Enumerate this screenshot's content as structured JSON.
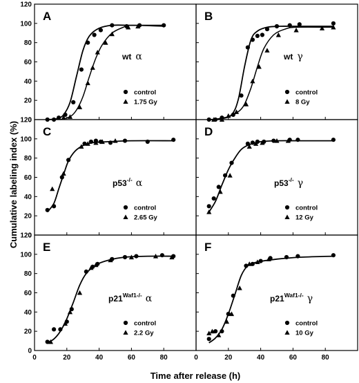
{
  "figure": {
    "ylabel": "Cumulative labeling index (%)",
    "xlabel": "Time after release (h)"
  },
  "chart_data": [
    {
      "type": "scatter",
      "panel": "A",
      "condition": "wt",
      "radiation": "α",
      "xlim": [
        0,
        100
      ],
      "ylim": [
        0,
        120
      ],
      "x_ticks": [
        0,
        20,
        40,
        60,
        80
      ],
      "y_ticks": [
        0,
        20,
        40,
        60,
        80,
        100,
        120
      ],
      "series": [
        {
          "name": "control",
          "marker": "circle",
          "x": [
            8,
            12,
            15,
            19,
            24,
            29,
            33,
            37,
            41,
            48,
            57,
            65,
            80
          ],
          "y": [
            0,
            0,
            2,
            5,
            18,
            52,
            80,
            88,
            93,
            98,
            97,
            98,
            98
          ],
          "curve": [
            [
              8,
              0
            ],
            [
              14,
              1
            ],
            [
              18,
              5
            ],
            [
              22,
              18
            ],
            [
              26,
              45
            ],
            [
              30,
              72
            ],
            [
              34,
              87
            ],
            [
              40,
              95
            ],
            [
              48,
              98
            ],
            [
              60,
              98
            ],
            [
              80,
              98
            ]
          ]
        },
        {
          "name": "1.75 Gy",
          "marker": "triangle",
          "x": [
            18,
            22,
            28,
            33,
            36,
            39,
            44,
            48,
            58,
            64
          ],
          "y": [
            2,
            3,
            13,
            38,
            54,
            70,
            80,
            89,
            96,
            97
          ],
          "curve": [
            [
              16,
              0
            ],
            [
              22,
              3
            ],
            [
              26,
              10
            ],
            [
              30,
              24
            ],
            [
              34,
              45
            ],
            [
              38,
              64
            ],
            [
              42,
              78
            ],
            [
              48,
              90
            ],
            [
              55,
              96
            ],
            [
              60,
              98
            ],
            [
              80,
              97
            ]
          ]
        }
      ]
    },
    {
      "type": "scatter",
      "panel": "B",
      "condition": "wt",
      "radiation": "γ",
      "xlim": [
        0,
        100
      ],
      "ylim": [
        0,
        120
      ],
      "x_ticks": [
        0,
        20,
        40,
        60,
        80
      ],
      "y_ticks": [
        0,
        20,
        40,
        60,
        80,
        100,
        120
      ],
      "series": [
        {
          "name": "control",
          "marker": "circle",
          "x": [
            8,
            12,
            16,
            23,
            28,
            32,
            35,
            38,
            41,
            44,
            50,
            58,
            64,
            85
          ],
          "y": [
            0,
            0,
            2,
            5,
            25,
            75,
            83,
            87,
            88,
            94,
            97,
            98,
            99,
            100
          ],
          "curve": [
            [
              8,
              0
            ],
            [
              16,
              1
            ],
            [
              22,
              5
            ],
            [
              26,
              20
            ],
            [
              30,
              55
            ],
            [
              34,
              83
            ],
            [
              38,
              92
            ],
            [
              44,
              96
            ],
            [
              52,
              97
            ],
            [
              60,
              97
            ],
            [
              85,
              97
            ]
          ]
        },
        {
          "name": "8 Gy",
          "marker": "triangle",
          "x": [
            11,
            16,
            20,
            25,
            31,
            35,
            39,
            44,
            51,
            62,
            78,
            85
          ],
          "y": [
            0,
            0,
            4,
            8,
            16,
            40,
            55,
            72,
            88,
            93,
            95,
            96
          ],
          "curve": [
            [
              10,
              0
            ],
            [
              20,
              3
            ],
            [
              26,
              8
            ],
            [
              30,
              16
            ],
            [
              34,
              33
            ],
            [
              38,
              55
            ],
            [
              42,
              74
            ],
            [
              48,
              88
            ],
            [
              55,
              94
            ],
            [
              62,
              96
            ],
            [
              85,
              96
            ]
          ]
        }
      ]
    },
    {
      "type": "scatter",
      "panel": "C",
      "condition": "p53",
      "superscript": "-/-",
      "radiation": "α",
      "xlim": [
        0,
        100
      ],
      "ylim": [
        0,
        120
      ],
      "x_ticks": [
        0,
        20,
        40,
        60,
        80
      ],
      "y_ticks": [
        0,
        20,
        40,
        60,
        80,
        100,
        120
      ],
      "series": [
        {
          "name": "control",
          "marker": "circle",
          "x": [
            8,
            12,
            17,
            21,
            31,
            35,
            38,
            41,
            47,
            56,
            70,
            86
          ],
          "y": [
            26,
            30,
            60,
            78,
            95,
            97,
            98,
            97,
            96,
            98,
            97,
            99
          ],
          "curve": [
            [
              8,
              24
            ],
            [
              12,
              33
            ],
            [
              15,
              48
            ],
            [
              18,
              63
            ],
            [
              21,
              77
            ],
            [
              25,
              87
            ],
            [
              30,
              93
            ],
            [
              36,
              96
            ],
            [
              45,
              97
            ],
            [
              60,
              98
            ],
            [
              86,
              98
            ]
          ]
        },
        {
          "name": "2.65 Gy",
          "marker": "triangle",
          "x": [
            11,
            18,
            29,
            33,
            38,
            42,
            50
          ],
          "y": [
            48,
            64,
            92,
            95,
            96,
            97,
            98
          ],
          "curve": []
        }
      ]
    },
    {
      "type": "scatter",
      "panel": "D",
      "condition": "p53",
      "superscript": "-/-",
      "radiation": "γ",
      "xlim": [
        0,
        100
      ],
      "ylim": [
        0,
        120
      ],
      "x_ticks": [
        0,
        20,
        40,
        60,
        80
      ],
      "y_ticks": [
        0,
        20,
        40,
        60,
        80,
        100,
        120
      ],
      "series": [
        {
          "name": "control",
          "marker": "circle",
          "x": [
            8,
            11,
            14,
            18,
            22,
            32,
            35,
            38,
            42,
            48,
            58,
            63,
            85
          ],
          "y": [
            30,
            38,
            50,
            62,
            75,
            95,
            96,
            97,
            97,
            98,
            99,
            99,
            99
          ],
          "curve": [
            [
              8,
              24
            ],
            [
              12,
              35
            ],
            [
              16,
              52
            ],
            [
              20,
              68
            ],
            [
              24,
              80
            ],
            [
              28,
              89
            ],
            [
              33,
              94
            ],
            [
              40,
              97
            ],
            [
              50,
              98
            ],
            [
              65,
              98
            ],
            [
              85,
              98
            ]
          ]
        },
        {
          "name": "12 Gy",
          "marker": "triangle",
          "x": [
            8,
            15,
            21,
            33,
            37,
            41,
            50,
            57
          ],
          "y": [
            24,
            45,
            62,
            92,
            95,
            96,
            98,
            98
          ],
          "curve": []
        }
      ]
    },
    {
      "type": "scatter",
      "panel": "E",
      "condition": "p21",
      "superscript": "Waf1-/-",
      "radiation": "α",
      "xlim": [
        0,
        100
      ],
      "ylim": [
        0,
        120
      ],
      "x_ticks": [
        0,
        20,
        40,
        60,
        80
      ],
      "y_ticks": [
        0,
        20,
        40,
        60,
        80,
        100,
        120
      ],
      "series": [
        {
          "name": "control",
          "marker": "circle",
          "x": [
            8,
            12,
            16,
            20,
            23,
            32,
            36,
            39,
            48,
            56,
            63,
            79,
            86
          ],
          "y": [
            9,
            22,
            22,
            30,
            43,
            82,
            87,
            90,
            95,
            97,
            98,
            99,
            98
          ],
          "curve": [
            [
              8,
              8
            ],
            [
              12,
              12
            ],
            [
              16,
              20
            ],
            [
              20,
              33
            ],
            [
              24,
              50
            ],
            [
              28,
              68
            ],
            [
              32,
              80
            ],
            [
              38,
              89
            ],
            [
              46,
              94
            ],
            [
              56,
              97
            ],
            [
              70,
              98
            ],
            [
              86,
              98
            ]
          ]
        },
        {
          "name": "2.2 Gy",
          "marker": "triangle",
          "x": [
            10,
            19,
            22,
            28,
            35,
            38,
            47,
            60,
            75,
            85
          ],
          "y": [
            9,
            28,
            40,
            60,
            86,
            89,
            94,
            97,
            98,
            97
          ],
          "curve": []
        }
      ]
    },
    {
      "type": "scatter",
      "panel": "F",
      "condition": "p21",
      "superscript": "Waf1-/-",
      "radiation": "γ",
      "xlim": [
        0,
        100
      ],
      "ylim": [
        0,
        120
      ],
      "x_ticks": [
        0,
        20,
        40,
        60,
        80
      ],
      "y_ticks": [
        0,
        20,
        40,
        60,
        80,
        100,
        120
      ],
      "series": [
        {
          "name": "control",
          "marker": "circle",
          "x": [
            8,
            12,
            16,
            20,
            23,
            31,
            35,
            40,
            46,
            56,
            63,
            85
          ],
          "y": [
            12,
            20,
            20,
            38,
            57,
            88,
            90,
            93,
            96,
            97,
            98,
            99
          ],
          "curve": [
            [
              8,
              8
            ],
            [
              12,
              13
            ],
            [
              16,
              22
            ],
            [
              20,
              38
            ],
            [
              24,
              58
            ],
            [
              28,
              78
            ],
            [
              32,
              88
            ],
            [
              38,
              92
            ],
            [
              50,
              95
            ],
            [
              65,
              97
            ],
            [
              85,
              98
            ]
          ]
        },
        {
          "name": "10 Gy",
          "marker": "triangle",
          "x": [
            8,
            10,
            14,
            19,
            22,
            27,
            33,
            38,
            45
          ],
          "y": [
            18,
            20,
            16,
            30,
            38,
            65,
            90,
            92,
            95
          ],
          "curve": []
        }
      ]
    }
  ]
}
